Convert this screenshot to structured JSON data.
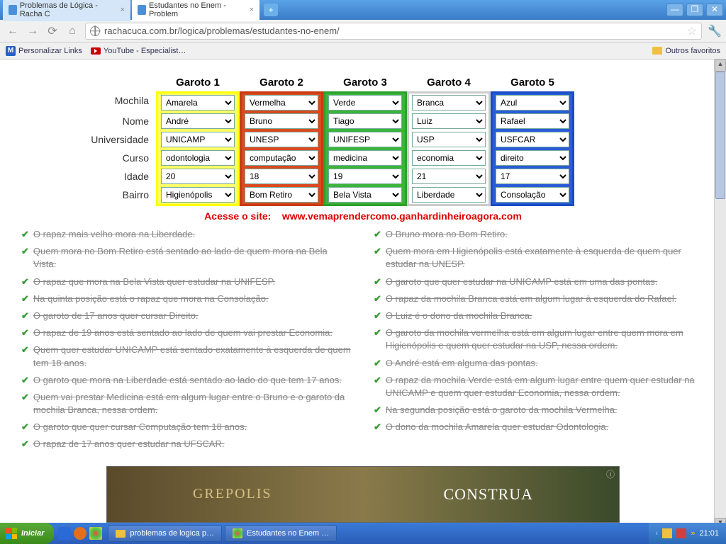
{
  "browser": {
    "tabs": [
      {
        "title": "Problemas de Lógica - Racha C"
      },
      {
        "title": "Estudantes no Enem - Problem"
      }
    ],
    "url": "rachacuca.com.br/logica/problemas/estudantes-no-enem/",
    "bookmarks": {
      "m": "Personalizar Links",
      "yt": "YouTube - Especialist…",
      "other": "Outros favoritos"
    },
    "win_min": "—",
    "win_max": "❐",
    "win_close": "✕"
  },
  "puzzle": {
    "columns": [
      "Garoto 1",
      "Garoto 2",
      "Garoto 3",
      "Garoto 4",
      "Garoto 5"
    ],
    "col_colors": [
      "#ffff66",
      "#d84a1f",
      "#3cb43c",
      "#ffffff",
      "#2a5cd8"
    ],
    "rows": [
      "Mochila",
      "Nome",
      "Universidade",
      "Curso",
      "Idade",
      "Bairro"
    ],
    "values": [
      [
        "Amarela",
        "Vermelha",
        "Verde",
        "Branca",
        "Azul"
      ],
      [
        "André",
        "Bruno",
        "Tiago",
        "Luiz",
        "Rafael"
      ],
      [
        "UNICAMP",
        "UNESP",
        "UNIFESP",
        "USP",
        "USFCAR"
      ],
      [
        "odontologia",
        "computação",
        "medicina",
        "economia",
        "direito"
      ],
      [
        "20",
        "18",
        "19",
        "21",
        "17"
      ],
      [
        "Higienópolis",
        "Bom Retiro",
        "Bela Vista",
        "Liberdade",
        "Consolação"
      ]
    ]
  },
  "promo": {
    "label": "Acesse o site:",
    "url": "www.vemaprendercomo.ganhardinheiroagora.com",
    "label_color": "#d00000",
    "url_color": "#d00000"
  },
  "clues_left": [
    "O rapaz mais velho mora na Liberdade.",
    "Quem mora no Bom Retiro está sentado ao lado de quem mora na Bela Vista.",
    "O rapaz que mora na Bela Vista quer estudar na UNIFESP.",
    "Na quinta posição está o rapaz que mora na Consolação.",
    "O garoto de 17 anos quer cursar Direito.",
    "O rapaz de 19 anos está sentado ao lado de quem vai prestar Economia.",
    "Quem quer estudar UNICAMP está sentado exatamente à esquerda de quem tem 18 anos.",
    "O garoto que mora na Liberdade está sentado ao lado do que tem 17 anos.",
    "Quem vai prestar Medicina está em algum lugar entre o Bruno e o garoto da mochila Branca, nessa ordem.",
    "O garoto que quer cursar Computação tem 18 anos.",
    "O rapaz de 17 anos quer estudar na UFSCAR."
  ],
  "clues_right": [
    "O Bruno mora no Bom Retiro.",
    "Quem mora em Higienópolis está exatamente à esquerda de quem quer estudar na UNESP.",
    "O garoto que quer estudar na UNICAMP está em uma das pontas.",
    "O rapaz da mochila Branca está em algum lugar à esquerda do Rafael.",
    "O Luiz é o dono da mochila Branca.",
    "O garoto da mochila vermelha está em algum lugar entre quem mora em Higienópolis e quem quer estudar na USP, nessa ordem.",
    "O André está em alguma das pontas.",
    "O rapaz da mochila Verde está em algum lugar entre quem quer estudar na UNICAMP e quem quer estudar Economia, nessa ordem.",
    "Na segunda posição está o garoto da mochila Vermelha.",
    "O dono da mochila Amarela quer estudar Odontologia."
  ],
  "ad": {
    "t1": "GREPOLIS",
    "t2": "CONSTRUA"
  },
  "taskbar": {
    "start": "Iniciar",
    "items": [
      {
        "label": "problemas de logica p…"
      },
      {
        "label": "Estudantes no Enem …"
      }
    ],
    "clock": "21:01"
  }
}
